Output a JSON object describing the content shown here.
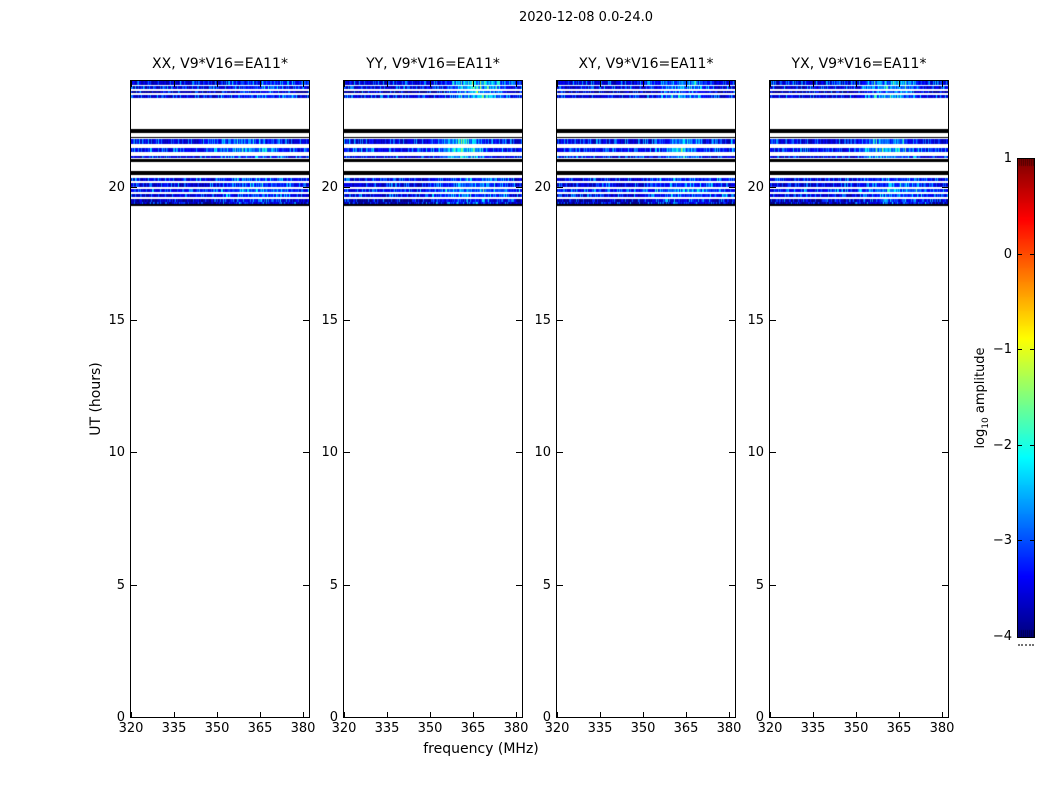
{
  "figure": {
    "title": "2020-12-08 0.0-24.0",
    "background": "#ffffff"
  },
  "colorbar": {
    "label_pre": "log",
    "label_sub": "10",
    "label_post": " amplitude"
  },
  "chart_data": {
    "type": "heatmap",
    "title": "2020-12-08 0.0-24.0",
    "panels": [
      {
        "label": "XX, V9*V16=EA11*",
        "hotspots": [
          {
            "band": "top",
            "f": [
              352,
              380
            ],
            "s": 0.45
          },
          {
            "band": "mid",
            "f": [
              344,
              376
            ],
            "s": 0.55
          },
          {
            "band": "low",
            "f": [
              348,
              381
            ],
            "s": 0.5
          }
        ]
      },
      {
        "label": "YY, V9*V16=EA11*",
        "hotspots": [
          {
            "band": "top",
            "f": [
              355,
              379
            ],
            "s": 1.55
          },
          {
            "band": "mid",
            "f": [
              351,
              371
            ],
            "s": 1.2
          },
          {
            "band": "low",
            "f": [
              348,
              381
            ],
            "s": 0.6
          }
        ]
      },
      {
        "label": "XY, V9*V16=EA11*",
        "hotspots": [
          {
            "band": "top",
            "f": [
              352,
              376
            ],
            "s": 0.85
          },
          {
            "band": "mid",
            "f": [
              356,
              371
            ],
            "s": 1.0
          },
          {
            "band": "low",
            "f": [
              348,
              381
            ],
            "s": 0.55
          }
        ]
      },
      {
        "label": "YX, V9*V16=EA11*",
        "hotspots": [
          {
            "band": "top",
            "f": [
              351,
              374
            ],
            "s": 1.3
          },
          {
            "band": "mid",
            "f": [
              349,
              372
            ],
            "s": 0.95
          },
          {
            "band": "low",
            "f": [
              348,
              381
            ],
            "s": 0.6
          }
        ]
      }
    ],
    "x": {
      "label": "frequency (MHz)",
      "range": [
        320,
        382
      ],
      "ticks": [
        320,
        335,
        350,
        365,
        380
      ],
      "unit": "MHz"
    },
    "y": {
      "label": "UT (hours)",
      "range": [
        0,
        24
      ],
      "ticks": [
        0,
        5,
        10,
        15,
        20
      ],
      "unit": "hours"
    },
    "value": {
      "label": "log10 amplitude",
      "range": [
        -4,
        1
      ],
      "ticks": [
        1,
        0,
        -1,
        -2,
        -3,
        -4
      ],
      "colormap": "jet"
    },
    "background": "empty (no data below UT 19.3)",
    "time_rows": [
      {
        "ut": [
          23.85,
          24.0
        ],
        "kind": "data",
        "band": "top"
      },
      {
        "ut": [
          23.7,
          23.8
        ],
        "kind": "data",
        "band": "top"
      },
      {
        "ut": [
          23.55,
          23.64
        ],
        "kind": "data",
        "band": "top",
        "mod": "dim"
      },
      {
        "ut": [
          23.36,
          23.49
        ],
        "kind": "data",
        "band": "top"
      },
      {
        "ut": [
          22.04,
          22.19
        ],
        "kind": "black",
        "band": "top"
      },
      {
        "ut": [
          21.84,
          21.9
        ],
        "kind": "black",
        "band": "mid"
      },
      {
        "ut": [
          21.61,
          21.82
        ],
        "kind": "data",
        "band": "mid"
      },
      {
        "ut": [
          21.31,
          21.48
        ],
        "kind": "data",
        "band": "mid",
        "mod": "bright"
      },
      {
        "ut": [
          21.08,
          21.18
        ],
        "kind": "data",
        "band": "mid"
      },
      {
        "ut": [
          20.93,
          21.07
        ],
        "kind": "black",
        "band": "mid"
      },
      {
        "ut": [
          20.46,
          20.61
        ],
        "kind": "black",
        "band": "low"
      },
      {
        "ut": [
          20.24,
          20.35
        ],
        "kind": "data",
        "band": "low"
      },
      {
        "ut": [
          20.01,
          20.16
        ],
        "kind": "data",
        "band": "low"
      },
      {
        "ut": [
          19.83,
          19.94
        ],
        "kind": "data",
        "band": "low",
        "mod": "bright"
      },
      {
        "ut": [
          19.64,
          19.75
        ],
        "kind": "data",
        "band": "low"
      },
      {
        "ut": [
          19.45,
          19.56
        ],
        "kind": "data",
        "band": "low",
        "mod": "dim"
      },
      {
        "ut": [
          19.37,
          19.44
        ],
        "kind": "data",
        "band": "low",
        "mod": "dim"
      },
      {
        "ut": [
          19.29,
          19.36
        ],
        "kind": "black",
        "band": "low"
      }
    ]
  }
}
